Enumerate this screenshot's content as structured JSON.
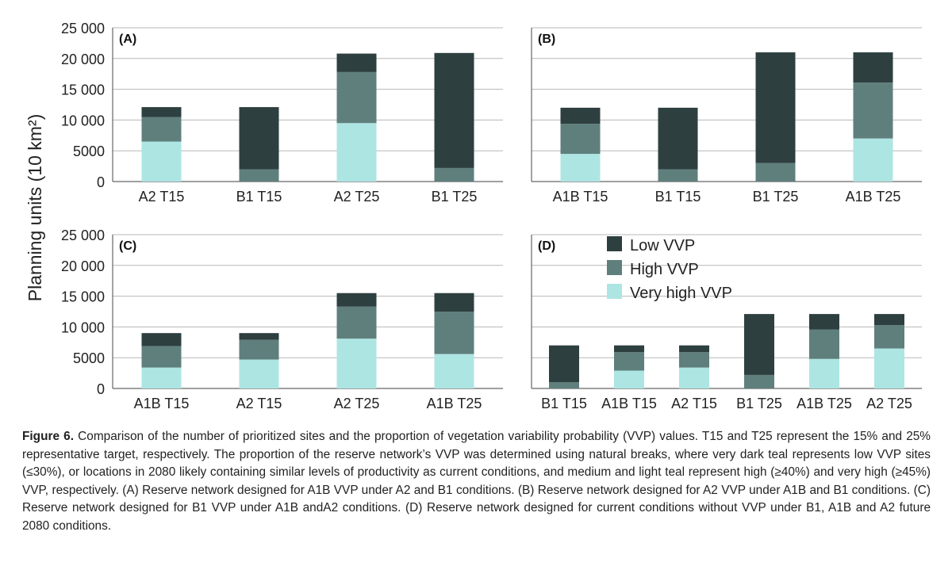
{
  "y_axis_label": "Planning units (10 km²)",
  "legend": {
    "low": "Low VVP",
    "high": "High VVP",
    "very_high": "Very high VVP"
  },
  "colors": {
    "low": "#2e3f3f",
    "high": "#5f7f7d",
    "very_high": "#ade5e3",
    "gridline": "#b7b7b7",
    "axis": "#666666"
  },
  "caption": {
    "label": "Figure 6.",
    "text": "Comparison of the number of prioritized sites and the proportion of vegetation variability probability (VVP) values. T15 and T25 represent the 15% and 25% representative target, respectively. The proportion of the reserve network’s VVP was determined using natural breaks, where very dark teal represents low VVP sites (≤30%), or locations in 2080 likely containing similar levels of productivity as current conditions, and medium and light teal represent high (≥40%) and very high (≥45%) VVP, respectively. (A) Reserve network designed for A1B VVP under A2 and B1 conditions. (B) Reserve network designed for A2 VVP under A1B and B1 conditions. (C) Reserve network designed for B1 VVP under A1B andA2 conditions. (D) Reserve network designed for current conditions without VVP under B1, A1B and A2 future 2080 conditions."
  },
  "chart_data": [
    {
      "type": "bar",
      "stacked": true,
      "panel": "(A)",
      "categories": [
        "A2 T15",
        "B1 T15",
        "A2 T25",
        "B1 T25"
      ],
      "series": [
        {
          "name": "Very high VVP",
          "key": "very_high",
          "values": [
            6500,
            0,
            9500,
            0
          ]
        },
        {
          "name": "High VVP",
          "key": "high",
          "values": [
            4000,
            2000,
            8300,
            2200
          ]
        },
        {
          "name": "Low VVP",
          "key": "low",
          "values": [
            1600,
            10100,
            3000,
            18700
          ]
        }
      ],
      "ylim": [
        0,
        25000
      ],
      "yticks": [
        0,
        5000,
        10000,
        15000,
        20000,
        25000
      ],
      "ytick_labels": [
        "0",
        "5000",
        "10 000",
        "15 000",
        "20 000",
        "25 000"
      ],
      "show_y_ticks": true,
      "grid": true
    },
    {
      "type": "bar",
      "stacked": true,
      "panel": "(B)",
      "categories": [
        "A1B T15",
        "B1 T15",
        "B1 T25",
        "A1B T25"
      ],
      "series": [
        {
          "name": "Very high VVP",
          "key": "very_high",
          "values": [
            4500,
            0,
            0,
            7000
          ]
        },
        {
          "name": "High VVP",
          "key": "high",
          "values": [
            4900,
            2000,
            3000,
            9100
          ]
        },
        {
          "name": "Low VVP",
          "key": "low",
          "values": [
            2600,
            10000,
            18000,
            4900
          ]
        }
      ],
      "ylim": [
        0,
        25000
      ],
      "yticks": [
        0,
        5000,
        10000,
        15000,
        20000,
        25000
      ],
      "show_y_ticks": false,
      "grid": true
    },
    {
      "type": "bar",
      "stacked": true,
      "panel": "(C)",
      "categories": [
        "A1B T15",
        "A2 T15",
        "A2 T25",
        "A1B T25"
      ],
      "series": [
        {
          "name": "Very high VVP",
          "key": "very_high",
          "values": [
            3400,
            4700,
            8100,
            5600
          ]
        },
        {
          "name": "High VVP",
          "key": "high",
          "values": [
            3500,
            3200,
            5200,
            6900
          ]
        },
        {
          "name": "Low VVP",
          "key": "low",
          "values": [
            2100,
            1100,
            2200,
            3000
          ]
        }
      ],
      "ylim": [
        0,
        25000
      ],
      "yticks": [
        0,
        5000,
        10000,
        15000,
        20000,
        25000
      ],
      "ytick_labels": [
        "0",
        "5000",
        "10 000",
        "15 000",
        "20 000",
        "25 000"
      ],
      "show_y_ticks": true,
      "grid": true
    },
    {
      "type": "bar",
      "stacked": true,
      "panel": "(D)",
      "categories": [
        "B1 T15",
        "A1B T15",
        "A2 T15",
        "B1 T25",
        "A1B T25",
        "A2 T25"
      ],
      "series": [
        {
          "name": "Very high VVP",
          "key": "very_high",
          "values": [
            0,
            2900,
            3400,
            0,
            4800,
            6500
          ]
        },
        {
          "name": "High VVP",
          "key": "high",
          "values": [
            1000,
            3000,
            2500,
            2200,
            4800,
            3800
          ]
        },
        {
          "name": "Low VVP",
          "key": "low",
          "values": [
            6000,
            1100,
            1100,
            9900,
            2500,
            1800
          ]
        }
      ],
      "ylim": [
        0,
        25000
      ],
      "yticks": [
        0,
        5000,
        10000,
        15000,
        20000,
        25000
      ],
      "show_y_ticks": false,
      "grid": true,
      "legend": "top-right"
    }
  ]
}
